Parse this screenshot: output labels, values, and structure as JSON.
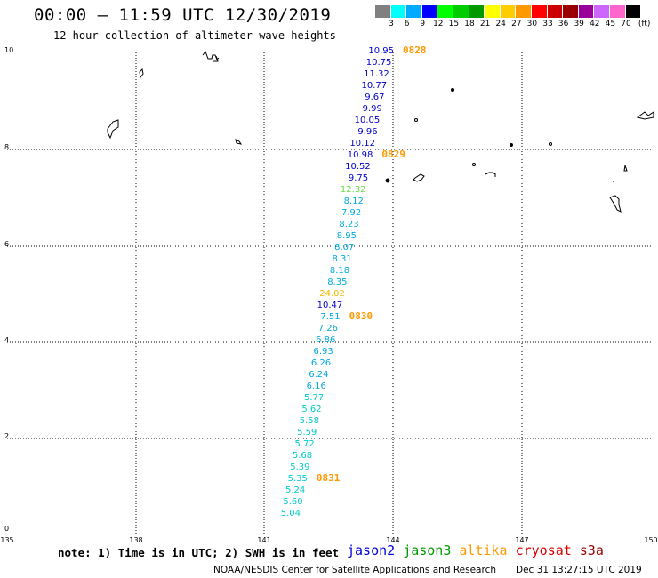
{
  "header": {
    "title": "00:00 – 11:59 UTC 12/30/2019",
    "subtitle": "12 hour collection of altimeter wave heights"
  },
  "colorbar": {
    "unit": "(ft)",
    "labels": [
      "3",
      "6",
      "9",
      "12",
      "15",
      "18",
      "21",
      "24",
      "27",
      "30",
      "33",
      "36",
      "39",
      "42",
      "45",
      "70"
    ],
    "colors": [
      "#808080",
      "#00ffff",
      "#00aaff",
      "#0000ff",
      "#00ff00",
      "#00cc00",
      "#009900",
      "#ffff00",
      "#ffcc00",
      "#ff9900",
      "#ff0000",
      "#cc0000",
      "#990000",
      "#990099",
      "#cc66ff",
      "#ff66cc",
      "#000000"
    ]
  },
  "axes": {
    "y_ticks": [
      "10",
      "8",
      "6",
      "4",
      "2",
      "0"
    ],
    "x_ticks": [
      "135",
      "138",
      "141",
      "144",
      "147",
      "150"
    ]
  },
  "time_marks": [
    "0828",
    "0829",
    "0830",
    "0831"
  ],
  "observations": [
    {
      "value": "10.95",
      "color": "#0000cc"
    },
    {
      "value": "10.75",
      "color": "#0000cc"
    },
    {
      "value": "11.32",
      "color": "#0000cc"
    },
    {
      "value": "10.77",
      "color": "#0000cc"
    },
    {
      "value": "9.67",
      "color": "#0000cc"
    },
    {
      "value": "9.99",
      "color": "#0000cc"
    },
    {
      "value": "10.05",
      "color": "#0000cc"
    },
    {
      "value": "9.96",
      "color": "#0000cc"
    },
    {
      "value": "10.12",
      "color": "#0000cc"
    },
    {
      "value": "10.98",
      "color": "#0000cc"
    },
    {
      "value": "10.52",
      "color": "#0000cc"
    },
    {
      "value": "9.75",
      "color": "#0000cc"
    },
    {
      "value": "12.32",
      "color": "#66dd44"
    },
    {
      "value": "8.12",
      "color": "#00aadd"
    },
    {
      "value": "7.92",
      "color": "#00aadd"
    },
    {
      "value": "8.23",
      "color": "#00aadd"
    },
    {
      "value": "8.95",
      "color": "#00aadd"
    },
    {
      "value": "8.07",
      "color": "#00aadd"
    },
    {
      "value": "8.31",
      "color": "#00aadd"
    },
    {
      "value": "8.18",
      "color": "#00aadd"
    },
    {
      "value": "8.35",
      "color": "#00aadd"
    },
    {
      "value": "24.02",
      "color": "#eebb00"
    },
    {
      "value": "10.47",
      "color": "#0000cc"
    },
    {
      "value": "7.51",
      "color": "#00aadd"
    },
    {
      "value": "7.26",
      "color": "#00aadd"
    },
    {
      "value": "6.86",
      "color": "#00aadd"
    },
    {
      "value": "6.93",
      "color": "#00aadd"
    },
    {
      "value": "6.26",
      "color": "#00aadd"
    },
    {
      "value": "6.24",
      "color": "#00aadd"
    },
    {
      "value": "6.16",
      "color": "#00aadd"
    },
    {
      "value": "5.77",
      "color": "#00cccc"
    },
    {
      "value": "5.62",
      "color": "#00cccc"
    },
    {
      "value": "5.58",
      "color": "#00cccc"
    },
    {
      "value": "5.59",
      "color": "#00cccc"
    },
    {
      "value": "5.72",
      "color": "#00cccc"
    },
    {
      "value": "5.68",
      "color": "#00cccc"
    },
    {
      "value": "5.39",
      "color": "#00cccc"
    },
    {
      "value": "5.35",
      "color": "#00cccc"
    },
    {
      "value": "5.24",
      "color": "#00cccc"
    },
    {
      "value": "5.60",
      "color": "#00cccc"
    },
    {
      "value": "5.04",
      "color": "#00cccc"
    }
  ],
  "footer": {
    "note": "note: 1) Time is in UTC; 2) SWH is in feet",
    "legend": [
      {
        "name": "jason2",
        "color": "#0000dd"
      },
      {
        "name": "jason3",
        "color": "#009900"
      },
      {
        "name": "altika",
        "color": "#ff9900"
      },
      {
        "name": "cryosat",
        "color": "#dd0000"
      },
      {
        "name": "s3a",
        "color": "#990000"
      }
    ],
    "credit": "NOAA/NESDIS Center for Satellite Applications and Research",
    "timestamp": "Dec 31 13:27:15 UTC 2019"
  }
}
